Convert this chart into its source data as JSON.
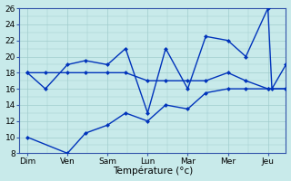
{
  "days": [
    "Dim",
    "Ven",
    "Sam",
    "Lun",
    "Mar",
    "Mer",
    "Jeu"
  ],
  "line_color": "#0033bb",
  "marker_size": 2.5,
  "lw": 1.0,
  "ylim": [
    8,
    26
  ],
  "yticks": [
    8,
    10,
    12,
    14,
    16,
    18,
    20,
    22,
    24,
    26
  ],
  "xlabel": "Température (°c)",
  "background_color": "#c8eaea",
  "grid_color": "#a0cccc",
  "line1_x": [
    0,
    0.45,
    1,
    1.45,
    2,
    2.45,
    3,
    3.45,
    4,
    4.45,
    5,
    5.45,
    6,
    6.45
  ],
  "line1_y": [
    18,
    18,
    18,
    18,
    18,
    18,
    17,
    17,
    17,
    17,
    18,
    17,
    16,
    16
  ],
  "line2_x": [
    0,
    1,
    1.45,
    2,
    2.45,
    3,
    3.45,
    4,
    4.45,
    5,
    5.45,
    6,
    6.45
  ],
  "line2_y": [
    10,
    8,
    10.5,
    11.5,
    13,
    12,
    14,
    13.5,
    15.5,
    16,
    16,
    16,
    16
  ],
  "line3_x": [
    0,
    0.45,
    1,
    1.45,
    2,
    2.45,
    3,
    3.45,
    4,
    4.45,
    5,
    5.45,
    6,
    6.1,
    6.45
  ],
  "line3_y": [
    18,
    16,
    19,
    19.5,
    19,
    21,
    13,
    21,
    16,
    22.5,
    22,
    20,
    26,
    16,
    19
  ]
}
